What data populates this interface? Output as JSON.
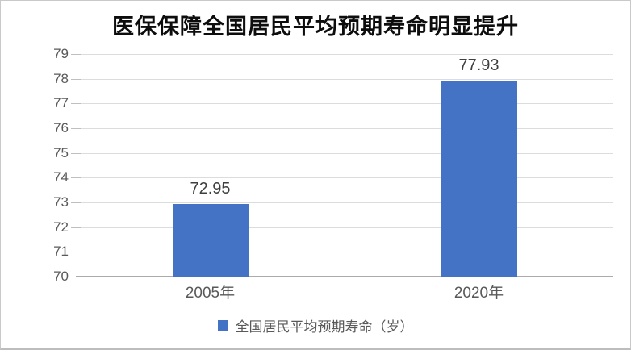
{
  "chart_data": {
    "type": "bar",
    "title": "医保保障全国居民平均预期寿命明显提升",
    "categories": [
      "2005年",
      "2020年"
    ],
    "values": [
      72.95,
      77.93
    ],
    "value_labels": [
      "72.95",
      "77.93"
    ],
    "legend_entries": [
      "全国居民平均预期寿命（岁）"
    ],
    "legend_position": "bottom",
    "xlabel": "",
    "ylabel": "",
    "ylim": [
      70,
      79
    ],
    "yticks": [
      70,
      71,
      72,
      73,
      74,
      75,
      76,
      77,
      78,
      79
    ],
    "grid": true,
    "bar_color": "#4472c4",
    "gridline_color": "#dcdcdc",
    "axis_line_color": "#ababab",
    "axis_text_color": "#595959",
    "title_color": "#0d0d0d"
  }
}
